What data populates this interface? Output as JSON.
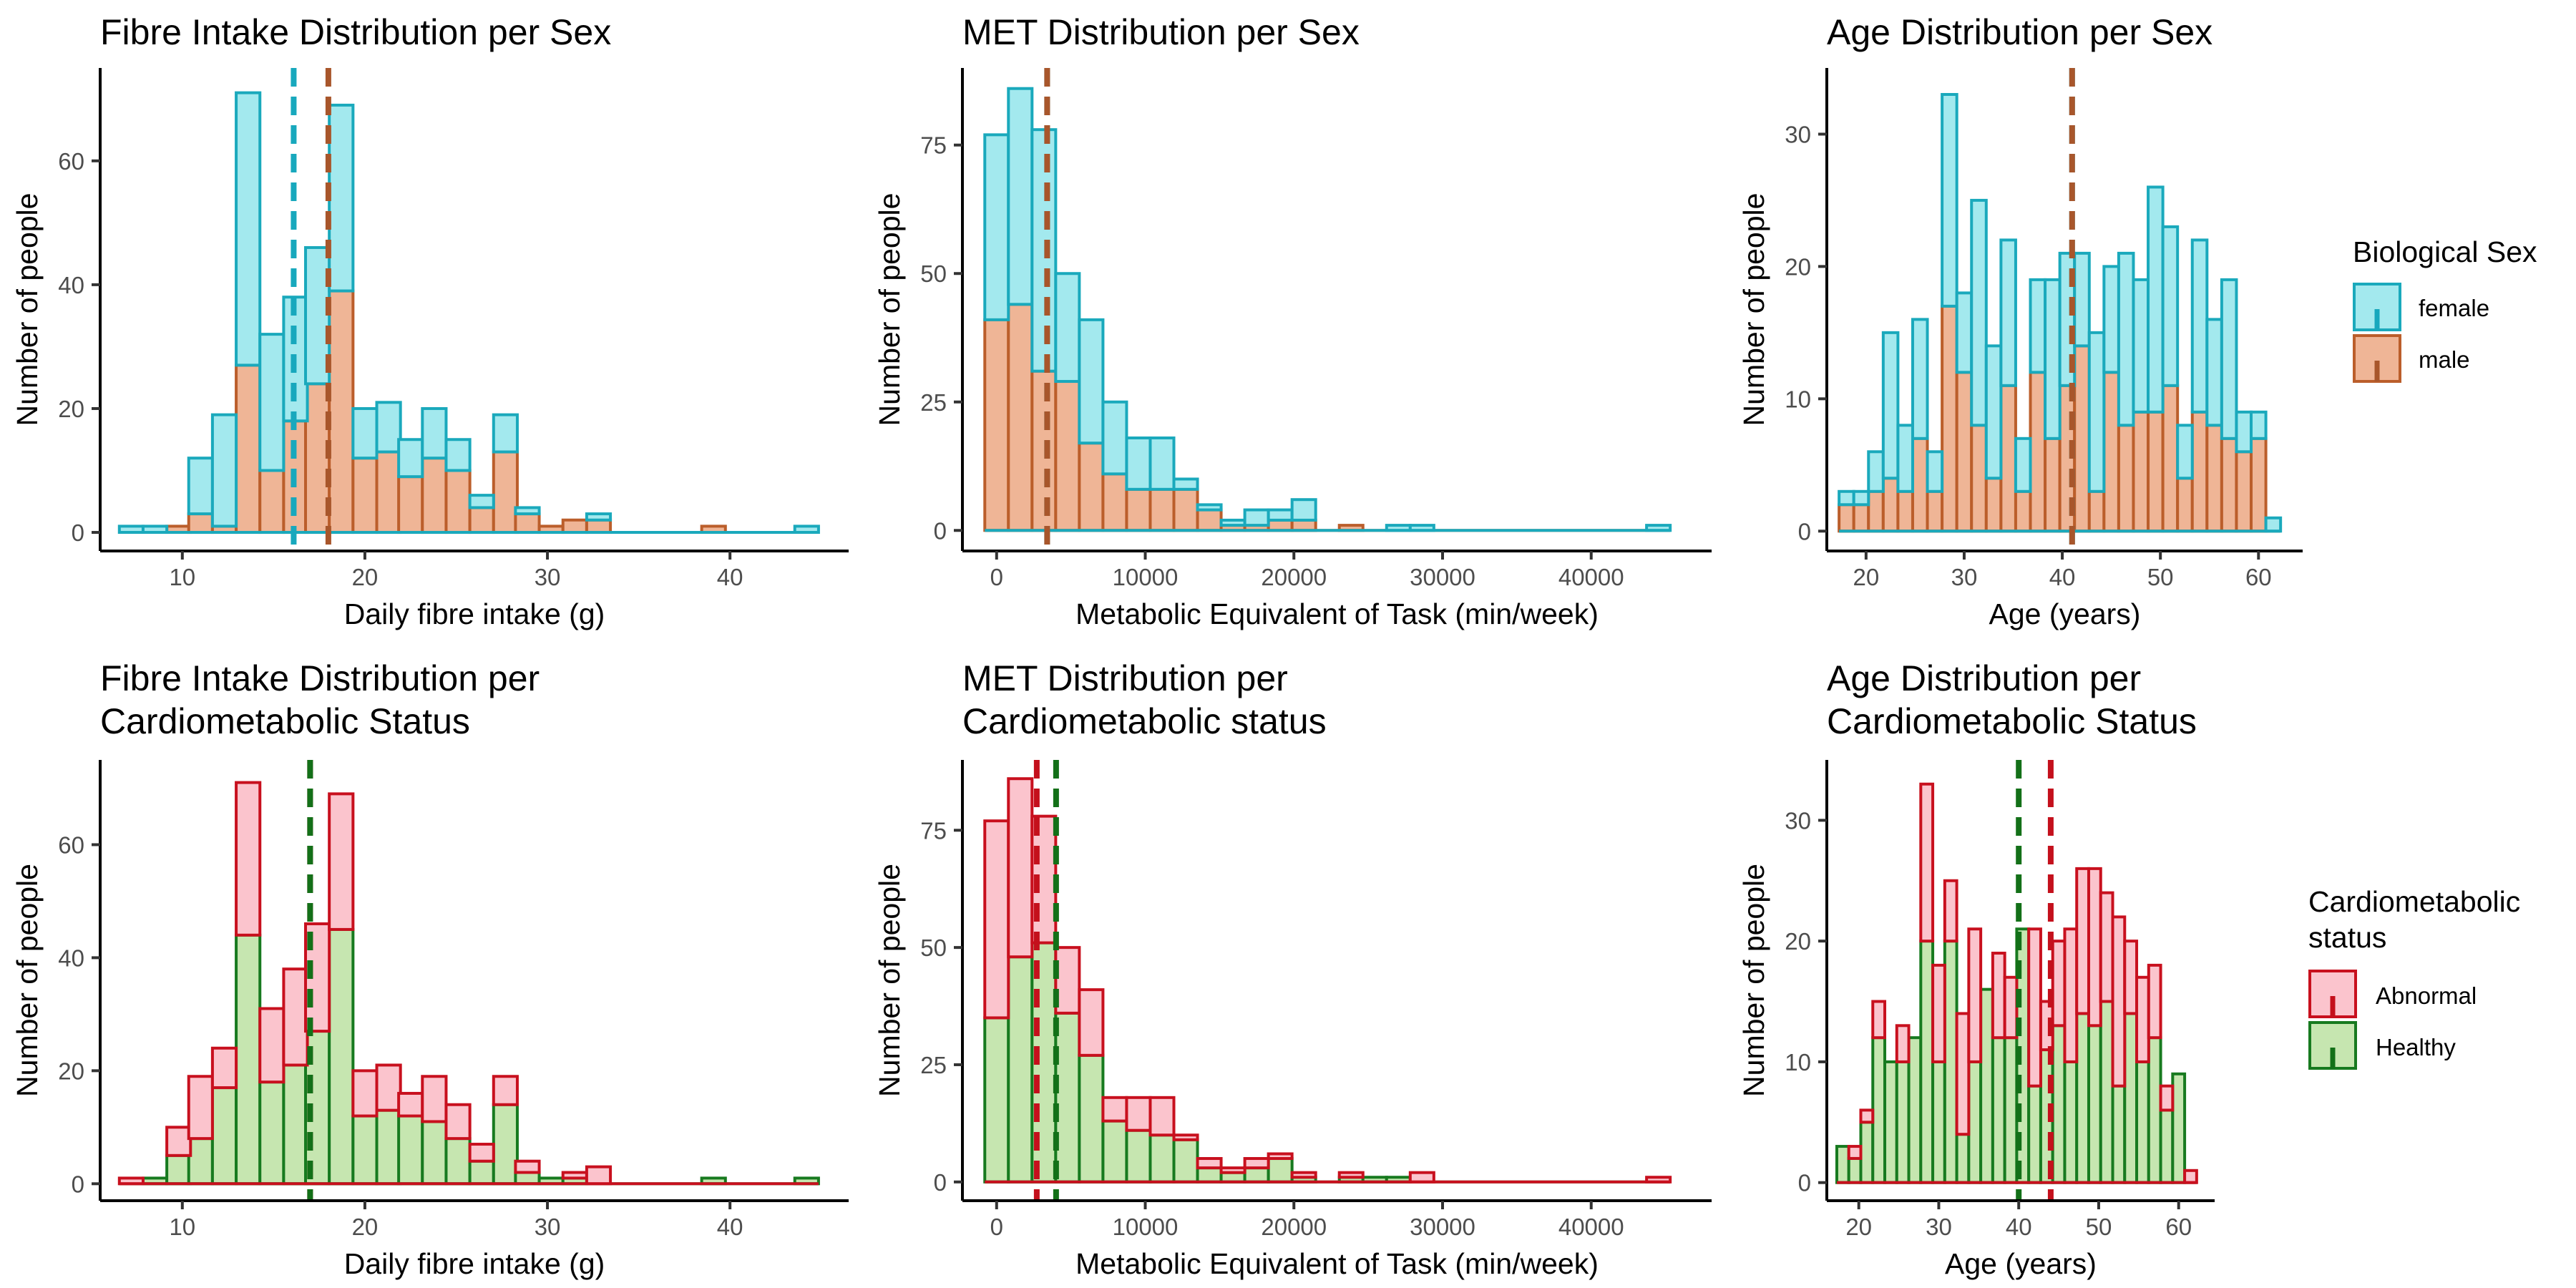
{
  "chart_data": [
    {
      "type": "bar",
      "stacked": true,
      "title": "Fibre Intake Distribution per Sex",
      "xlabel": "Daily fibre intake (g)",
      "ylabel": "Number of people",
      "xlim": [
        5.5,
        46.5
      ],
      "ylim": [
        -3,
        75
      ],
      "xticks": [
        10,
        20,
        30,
        40
      ],
      "yticks": [
        0,
        20,
        40,
        60
      ],
      "x": [
        7.2,
        8.5,
        9.8,
        11.0,
        12.3,
        13.6,
        14.9,
        16.2,
        17.4,
        18.7,
        20.0,
        21.3,
        22.5,
        23.8,
        25.1,
        26.4,
        27.7,
        28.9,
        30.2,
        31.5,
        32.8,
        34.0,
        35.3,
        36.6,
        37.9,
        39.1,
        40.4,
        41.7,
        43.0,
        44.2
      ],
      "series": [
        {
          "name": "male",
          "values": [
            0,
            0,
            1,
            3,
            1,
            27,
            10,
            18,
            24,
            39,
            12,
            13,
            9,
            12,
            10,
            4,
            13,
            3,
            1,
            2,
            2,
            0,
            0,
            0,
            0,
            1,
            0,
            0,
            0,
            0
          ]
        },
        {
          "name": "female",
          "values": [
            1,
            1,
            0,
            9,
            18,
            44,
            22,
            20,
            22,
            30,
            8,
            8,
            6,
            8,
            5,
            2,
            6,
            1,
            0,
            0,
            1,
            0,
            0,
            0,
            0,
            0,
            0,
            0,
            0,
            1
          ]
        }
      ],
      "means": [
        {
          "group": "female",
          "value": 16.1
        },
        {
          "group": "male",
          "value": 18.0
        }
      ]
    },
    {
      "type": "bar",
      "stacked": true,
      "title": "MET Distribution per Sex",
      "xlabel": "Metabolic Equivalent of Task (min/week)",
      "ylabel": "Number of people",
      "xlim": [
        -2300,
        48100
      ],
      "ylim": [
        -4,
        90
      ],
      "xticks": [
        0,
        10000,
        20000,
        30000,
        40000
      ],
      "yticks": [
        0,
        25,
        50,
        75
      ],
      "x": [
        0,
        1590,
        3180,
        4770,
        6360,
        7950,
        9540,
        11130,
        12720,
        14310,
        15900,
        17490,
        19080,
        20670,
        22260,
        23850,
        25440,
        27030,
        28620,
        30210,
        31800,
        33390,
        34980,
        36570,
        38160,
        39750,
        41340,
        42930,
        44520
      ],
      "series": [
        {
          "name": "male",
          "values": [
            41,
            44,
            31,
            29,
            17,
            11,
            8,
            8,
            8,
            4,
            1,
            1,
            2,
            2,
            0,
            1,
            0,
            0,
            0,
            0,
            0,
            0,
            0,
            0,
            0,
            0,
            0,
            0,
            0
          ]
        },
        {
          "name": "female",
          "values": [
            36,
            42,
            47,
            21,
            24,
            14,
            10,
            10,
            2,
            1,
            1,
            3,
            2,
            4,
            0,
            0,
            0,
            1,
            1,
            0,
            0,
            0,
            0,
            0,
            0,
            0,
            0,
            0,
            1
          ]
        }
      ],
      "means": [
        {
          "group": "female",
          "value": 3400
        },
        {
          "group": "male",
          "value": 3400
        }
      ]
    },
    {
      "type": "bar",
      "stacked": true,
      "title": "Age Distribution per Sex",
      "xlabel": "Age (years)",
      "ylabel": "Number of people",
      "xlim": [
        16,
        64.5
      ],
      "ylim": [
        -1.5,
        35
      ],
      "xticks": [
        20,
        30,
        40,
        50,
        60
      ],
      "yticks": [
        0,
        10,
        20,
        30
      ],
      "x": [
        18,
        19.5,
        21,
        22.5,
        24,
        25.5,
        27,
        28.5,
        30,
        31.5,
        33,
        34.5,
        36,
        37.5,
        39,
        40.5,
        42,
        43.5,
        45,
        46.5,
        48,
        49.5,
        51,
        52.5,
        54,
        55.5,
        57,
        58.5,
        60,
        61.5
      ],
      "series": [
        {
          "name": "male",
          "values": [
            2,
            2,
            3,
            4,
            3,
            7,
            3,
            17,
            12,
            8,
            4,
            11,
            3,
            12,
            7,
            11,
            14,
            3,
            12,
            8,
            9,
            9,
            11,
            4,
            9,
            8,
            7,
            6,
            7,
            0
          ]
        },
        {
          "name": "female",
          "values": [
            1,
            1,
            3,
            11,
            5,
            9,
            3,
            16,
            6,
            17,
            10,
            11,
            4,
            7,
            12,
            10,
            7,
            12,
            8,
            13,
            10,
            17,
            12,
            4,
            13,
            8,
            12,
            3,
            2,
            1
          ]
        }
      ],
      "means": [
        {
          "group": "female",
          "value": 41
        },
        {
          "group": "male",
          "value": 41
        }
      ]
    },
    {
      "type": "bar",
      "stacked": true,
      "title": "Fibre Intake Distribution per Cardiometabolic Status",
      "xlabel": "Daily fibre intake (g)",
      "ylabel": "Number of people",
      "xlim": [
        5.5,
        46.5
      ],
      "ylim": [
        -3,
        75
      ],
      "xticks": [
        10,
        20,
        30,
        40
      ],
      "yticks": [
        0,
        20,
        40,
        60
      ],
      "x": [
        7.2,
        8.5,
        9.8,
        11.0,
        12.3,
        13.6,
        14.9,
        16.2,
        17.4,
        18.7,
        20.0,
        21.3,
        22.5,
        23.8,
        25.1,
        26.4,
        27.7,
        28.9,
        30.2,
        31.5,
        32.8,
        34.0,
        35.3,
        36.6,
        37.9,
        39.1,
        40.4,
        41.7,
        43.0,
        44.2
      ],
      "series": [
        {
          "name": "Healthy",
          "values": [
            0,
            1,
            5,
            8,
            17,
            44,
            18,
            21,
            27,
            45,
            12,
            13,
            12,
            11,
            8,
            4,
            14,
            2,
            1,
            1,
            0,
            0,
            0,
            0,
            0,
            1,
            0,
            0,
            0,
            1
          ]
        },
        {
          "name": "Abnormal",
          "values": [
            1,
            0,
            5,
            11,
            7,
            27,
            13,
            17,
            19,
            24,
            8,
            8,
            4,
            8,
            6,
            3,
            5,
            2,
            0,
            1,
            3,
            0,
            0,
            0,
            0,
            0,
            0,
            0,
            0,
            0
          ]
        }
      ],
      "means": [
        {
          "group": "Abnormal",
          "value": 17.0
        },
        {
          "group": "Healthy",
          "value": 17.0
        }
      ]
    },
    {
      "type": "bar",
      "stacked": true,
      "title": "MET Distribution per Cardiometabolic status",
      "xlabel": "Metabolic Equivalent of Task (min/week)",
      "ylabel": "Number of people",
      "xlim": [
        -2300,
        48100
      ],
      "ylim": [
        -4,
        90
      ],
      "xticks": [
        0,
        10000,
        20000,
        30000,
        40000
      ],
      "yticks": [
        0,
        25,
        50,
        75
      ],
      "x": [
        0,
        1590,
        3180,
        4770,
        6360,
        7950,
        9540,
        11130,
        12720,
        14310,
        15900,
        17490,
        19080,
        20670,
        22260,
        23850,
        25440,
        27030,
        28620,
        30210,
        31800,
        33390,
        34980,
        36570,
        38160,
        39750,
        41340,
        42930,
        44520
      ],
      "series": [
        {
          "name": "Healthy",
          "values": [
            35,
            48,
            51,
            36,
            27,
            13,
            11,
            10,
            9,
            3,
            2,
            3,
            5,
            1,
            0,
            1,
            1,
            1,
            0,
            0,
            0,
            0,
            0,
            0,
            0,
            0,
            0,
            0,
            0
          ]
        },
        {
          "name": "Abnormal",
          "values": [
            42,
            38,
            27,
            14,
            14,
            5,
            7,
            8,
            1,
            2,
            1,
            2,
            1,
            1,
            0,
            1,
            0,
            0,
            2,
            0,
            0,
            0,
            0,
            0,
            0,
            0,
            0,
            0,
            1
          ]
        }
      ],
      "means": [
        {
          "group": "Abnormal",
          "value": 2700
        },
        {
          "group": "Healthy",
          "value": 4000
        }
      ]
    },
    {
      "type": "bar",
      "stacked": true,
      "title": "Age Distribution per Cardiometabolic Status",
      "xlabel": "Age (years)",
      "ylabel": "Number of people",
      "xlim": [
        16,
        64.5
      ],
      "ylim": [
        -1.5,
        35
      ],
      "xticks": [
        20,
        30,
        40,
        50,
        60
      ],
      "yticks": [
        0,
        10,
        20,
        30
      ],
      "x": [
        18,
        19.5,
        21,
        22.5,
        24,
        25.5,
        27,
        28.5,
        30,
        31.5,
        33,
        34.5,
        36,
        37.5,
        39,
        40.5,
        42,
        43.5,
        45,
        46.5,
        48,
        49.5,
        51,
        52.5,
        54,
        55.5,
        57,
        58.5,
        60,
        61.5
      ],
      "series": [
        {
          "name": "Healthy",
          "values": [
            3,
            2,
            5,
            12,
            10,
            10,
            12,
            20,
            10,
            20,
            4,
            10,
            16,
            12,
            12,
            21,
            8,
            11,
            13,
            10,
            14,
            13,
            15,
            8,
            14,
            10,
            12,
            6,
            9,
            0
          ]
        },
        {
          "name": "Abnormal",
          "values": [
            0,
            1,
            1,
            3,
            0,
            3,
            0,
            13,
            8,
            5,
            10,
            11,
            0,
            7,
            5,
            0,
            13,
            4,
            7,
            11,
            12,
            13,
            9,
            14,
            6,
            7,
            6,
            2,
            0,
            1
          ]
        }
      ],
      "means": [
        {
          "group": "Abnormal",
          "value": 44
        },
        {
          "group": "Healthy",
          "value": 40
        }
      ]
    }
  ],
  "legends": {
    "sex": {
      "title": "Biological Sex",
      "items": [
        {
          "label": "female",
          "fill": "#a3e9ee",
          "stroke": "#1aa9bc"
        },
        {
          "label": "male",
          "fill": "#efb596",
          "stroke": "#bb5e2b"
        }
      ]
    },
    "cardio": {
      "title_lines": [
        "Cardiometabolic",
        "status"
      ],
      "items": [
        {
          "label": "Abnormal",
          "fill": "#fbc4cd",
          "stroke": "#c8101e"
        },
        {
          "label": "Healthy",
          "fill": "#c6e6b0",
          "stroke": "#177a1f"
        }
      ]
    }
  },
  "colors": {
    "female": {
      "fill": "#a3e9ee",
      "stroke": "#1aa9bc",
      "mean": "#18a8bd"
    },
    "male": {
      "fill": "#efb596",
      "stroke": "#bb5e2b",
      "mean": "#a8562b"
    },
    "Abnormal": {
      "fill": "#fbc4cd",
      "stroke": "#c8101e",
      "mean": "#c4101c"
    },
    "Healthy": {
      "fill": "#c6e6b0",
      "stroke": "#177a1f",
      "mean": "#137018"
    }
  }
}
